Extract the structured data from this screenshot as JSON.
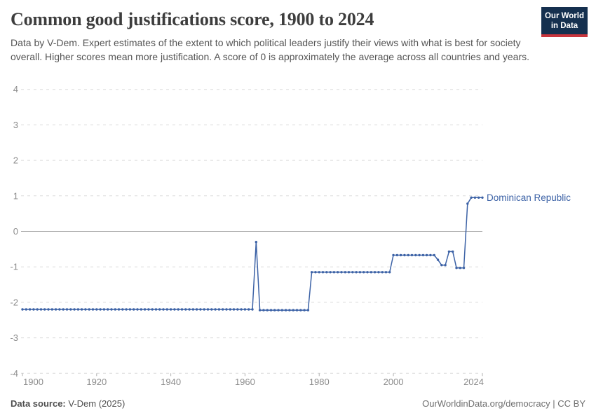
{
  "header": {
    "title": "Common good justifications score, 1900 to 2024",
    "subtitle": "Data by V-Dem. Expert estimates of the extent to which political leaders justify their views with what is best for society overall. Higher scores mean more justification. A score of 0 is approximately the average across all countries and years.",
    "logo_line1": "Our World",
    "logo_line2": "in Data"
  },
  "footer": {
    "source_label": "Data source:",
    "source_value": " V-Dem (2025)",
    "credit": "OurWorldinData.org/democracy | CC BY"
  },
  "colors": {
    "line": "#3c62a6",
    "gridline_dashed": "#dadada",
    "gridline_zero": "#a3a3a3",
    "axis_tick": "#b0b0b0",
    "axis_text": "#8c8c8c",
    "logo_navy": "#15304f",
    "logo_red": "#c9353d"
  },
  "chart_data": {
    "type": "line",
    "title": "Common good justifications score, 1900 to 2024",
    "entity": "Dominican Republic",
    "xlabel": "",
    "ylabel": "",
    "xlim": [
      1900,
      2024
    ],
    "ylim": [
      -4,
      4
    ],
    "x_ticks": [
      1900,
      1920,
      1940,
      1960,
      1980,
      2000,
      2024
    ],
    "y_ticks": [
      4,
      3,
      2,
      1,
      0,
      -1,
      -2,
      -3,
      -4
    ],
    "grid": "horizontal-dashed, zero-line-solid",
    "legend_position": "end-of-line-label",
    "markers": true,
    "series": [
      {
        "name": "Dominican Republic",
        "segments": [
          {
            "from": 1900,
            "to": 1962,
            "value": -2.2
          },
          {
            "from": 1963,
            "to": 1963,
            "value": -0.3
          },
          {
            "from": 1964,
            "to": 1977,
            "value": -2.22
          },
          {
            "from": 1978,
            "to": 1999,
            "value": -1.15
          },
          {
            "from": 2000,
            "to": 2011,
            "value": -0.67
          },
          {
            "from": 2012,
            "to": 2012,
            "value": -0.8
          },
          {
            "from": 2013,
            "to": 2014,
            "value": -0.95
          },
          {
            "from": 2015,
            "to": 2016,
            "value": -0.57
          },
          {
            "from": 2017,
            "to": 2019,
            "value": -1.03
          },
          {
            "from": 2020,
            "to": 2020,
            "value": 0.78
          },
          {
            "from": 2021,
            "to": 2024,
            "value": 0.95
          }
        ]
      }
    ]
  }
}
